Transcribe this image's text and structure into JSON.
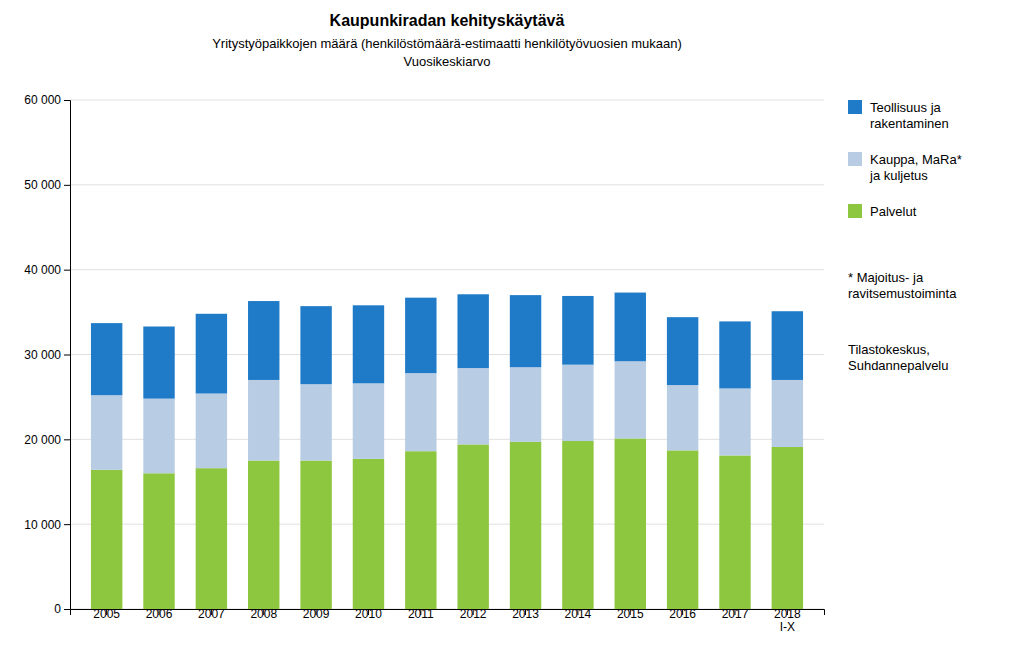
{
  "chart_data": {
    "type": "bar",
    "stacked": true,
    "title": "Kaupunkiradan kehityskäytävä",
    "subtitle": "Yritystyöpaikkojen määrä (henkilöstömäärä-estimaatti henkilötyövuosien mukaan)\nVuosikeskiarvo",
    "categories": [
      "2005",
      "2006",
      "2007",
      "2008",
      "2009",
      "2010",
      "2011",
      "2012",
      "2013",
      "2014",
      "2015",
      "2016",
      "2017",
      "2018\nI-X"
    ],
    "series": [
      {
        "name": "Palvelut",
        "color": "#8dc63f",
        "values": [
          16400,
          16000,
          16600,
          17500,
          17500,
          17700,
          18600,
          19400,
          19700,
          19800,
          20100,
          18700,
          18100,
          19100
        ]
      },
      {
        "name": "Kauppa, MaRa*\nja kuljetus",
        "color": "#b8cce4",
        "values": [
          8800,
          8800,
          8800,
          9500,
          9000,
          8900,
          9200,
          9000,
          8800,
          9000,
          9100,
          7700,
          7900,
          7900
        ]
      },
      {
        "name": "Teollisuus ja\nrakentaminen",
        "color": "#1f7bc8",
        "values": [
          8500,
          8500,
          9400,
          9300,
          9200,
          9200,
          8900,
          8700,
          8500,
          8100,
          8100,
          8000,
          7900,
          8100
        ]
      }
    ],
    "ylim": [
      0,
      60000
    ],
    "yticks": [
      0,
      {
        "value": 10000,
        "label": "10 000"
      },
      {
        "value": 20000,
        "label": "20 000"
      },
      {
        "value": 30000,
        "label": "30 000"
      },
      {
        "value": 40000,
        "label": "40 000"
      },
      {
        "value": 50000,
        "label": "50 000"
      },
      {
        "value": 60000,
        "label": "60 000"
      }
    ],
    "grid": true,
    "legend": "right",
    "annotations": [
      "* Majoitus- ja\nravitsemustoiminta",
      "Tilastokeskus,\nSuhdannepalvelu"
    ]
  }
}
